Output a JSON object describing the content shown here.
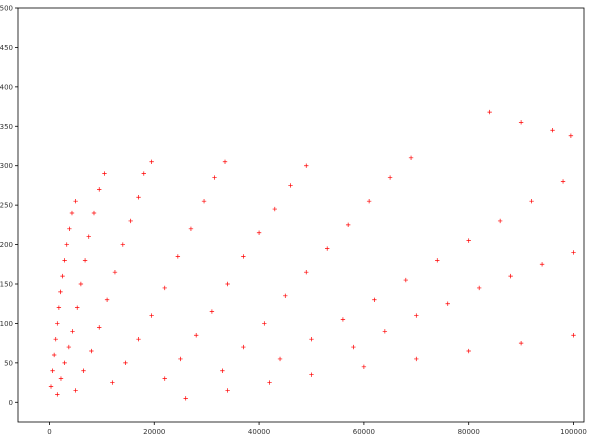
{
  "chart_data": {
    "type": "scatter",
    "title": "",
    "xlabel": "",
    "ylabel": "",
    "marker": "+",
    "color": "#ff0000",
    "xlim": [
      -6000,
      102000
    ],
    "ylim": [
      -25,
      500
    ],
    "x_ticks": [
      0,
      20000,
      40000,
      60000,
      80000,
      100000
    ],
    "x_tick_labels": [
      "0",
      "20000",
      "40000",
      "60000",
      "80000",
      "100000"
    ],
    "y_ticks": [
      0,
      50,
      100,
      150,
      200,
      250,
      300,
      350,
      400,
      450,
      500
    ],
    "y_tick_labels": [
      "0",
      "50",
      "100",
      "150",
      "200",
      "250",
      "300",
      "350",
      "400",
      "450",
      "500"
    ],
    "grid": false,
    "series": [
      {
        "values": [
          [
            300,
            20
          ],
          [
            600,
            40
          ],
          [
            900,
            60
          ],
          [
            1200,
            80
          ],
          [
            1500,
            100
          ],
          [
            1800,
            120
          ],
          [
            2100,
            140
          ],
          [
            2500,
            160
          ],
          [
            2900,
            180
          ],
          [
            3300,
            200
          ],
          [
            3800,
            220
          ],
          [
            4300,
            240
          ],
          [
            5000,
            255
          ],
          [
            1500,
            10
          ],
          [
            2200,
            30
          ],
          [
            2900,
            50
          ],
          [
            3700,
            70
          ],
          [
            4400,
            90
          ],
          [
            5300,
            120
          ],
          [
            6000,
            150
          ],
          [
            6800,
            180
          ],
          [
            7500,
            210
          ],
          [
            8500,
            240
          ],
          [
            9500,
            270
          ],
          [
            10500,
            290
          ],
          [
            5000,
            15
          ],
          [
            6500,
            40
          ],
          [
            8000,
            65
          ],
          [
            9500,
            95
          ],
          [
            11000,
            130
          ],
          [
            12500,
            165
          ],
          [
            14000,
            200
          ],
          [
            15500,
            230
          ],
          [
            17000,
            260
          ],
          [
            18000,
            290
          ],
          [
            19500,
            305
          ],
          [
            12000,
            25
          ],
          [
            14500,
            50
          ],
          [
            17000,
            80
          ],
          [
            19500,
            110
          ],
          [
            22000,
            145
          ],
          [
            24500,
            185
          ],
          [
            27000,
            220
          ],
          [
            29500,
            255
          ],
          [
            31500,
            285
          ],
          [
            33500,
            305
          ],
          [
            22000,
            30
          ],
          [
            25000,
            55
          ],
          [
            28000,
            85
          ],
          [
            31000,
            115
          ],
          [
            34000,
            150
          ],
          [
            37000,
            185
          ],
          [
            40000,
            215
          ],
          [
            43000,
            245
          ],
          [
            46000,
            275
          ],
          [
            49000,
            300
          ],
          [
            33000,
            40
          ],
          [
            37000,
            70
          ],
          [
            41000,
            100
          ],
          [
            45000,
            135
          ],
          [
            49000,
            165
          ],
          [
            53000,
            195
          ],
          [
            57000,
            225
          ],
          [
            61000,
            255
          ],
          [
            65000,
            285
          ],
          [
            69000,
            310
          ],
          [
            44000,
            55
          ],
          [
            50000,
            80
          ],
          [
            56000,
            105
          ],
          [
            62000,
            130
          ],
          [
            68000,
            155
          ],
          [
            74000,
            180
          ],
          [
            80000,
            205
          ],
          [
            86000,
            230
          ],
          [
            92000,
            255
          ],
          [
            98000,
            280
          ],
          [
            58000,
            70
          ],
          [
            64000,
            90
          ],
          [
            70000,
            110
          ],
          [
            76000,
            125
          ],
          [
            82000,
            145
          ],
          [
            88000,
            160
          ],
          [
            94000,
            175
          ],
          [
            100000,
            190
          ],
          [
            26000,
            5
          ],
          [
            34000,
            15
          ],
          [
            42000,
            25
          ],
          [
            50000,
            35
          ],
          [
            60000,
            45
          ],
          [
            70000,
            55
          ],
          [
            80000,
            65
          ],
          [
            90000,
            75
          ],
          [
            100000,
            85
          ],
          [
            84000,
            368
          ],
          [
            90000,
            355
          ],
          [
            96000,
            345
          ],
          [
            99500,
            338
          ]
        ]
      }
    ]
  }
}
